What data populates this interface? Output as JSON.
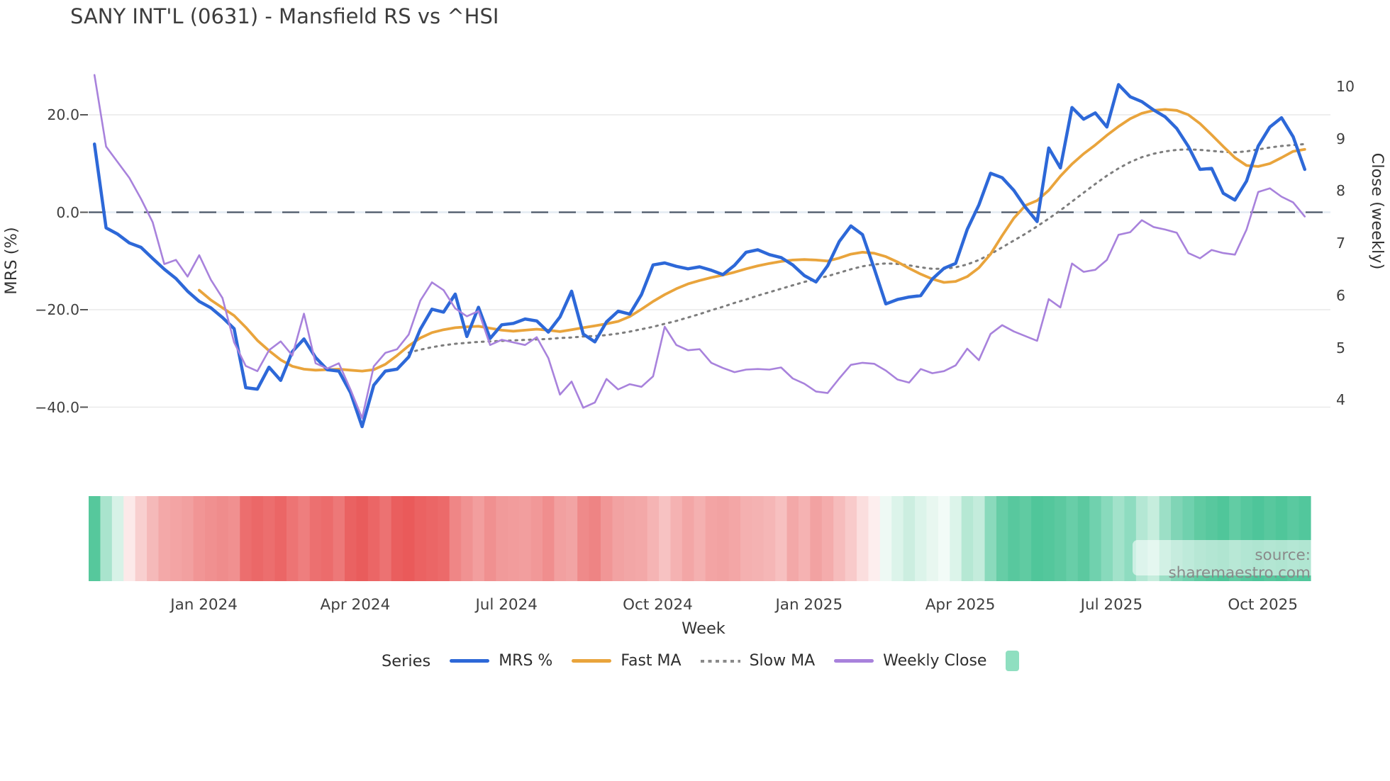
{
  "header": {
    "title": "SANY INT'L (0631) - Mansfield RS vs ^HSI"
  },
  "source": {
    "label": "source: sharemaestro.com"
  },
  "legend": {
    "title": "Series",
    "items": [
      {
        "label": "MRS %",
        "color": "#2d68d8",
        "style": "solid"
      },
      {
        "label": "Fast MA",
        "color": "#e9a43c",
        "style": "solid"
      },
      {
        "label": "Slow MA",
        "color": "#8a8a8a",
        "style": "dotted"
      },
      {
        "label": "Weekly Close",
        "color": "#a882dc",
        "style": "solid"
      }
    ],
    "heatmap_swatch_color": "#8fdfc0"
  },
  "chart_data": {
    "type": "line",
    "title": "SANY INT'L (0631) - Mansfield RS vs ^HSI",
    "xlabel": "Week",
    "ylabel_left": "MRS (%)",
    "ylabel_right": "Close (weekly)",
    "grid": "horizontal-light",
    "zero_reference_line": {
      "value": 0,
      "axis": "left",
      "style": "long-dash",
      "color": "#4d5868"
    },
    "x_tick_labels": [
      "Jan 2024",
      "Apr 2024",
      "Jul 2024",
      "Oct 2024",
      "Jan 2025",
      "Apr 2025",
      "Jul 2025",
      "Oct 2025"
    ],
    "y_left_ticks": [
      {
        "label": "20.0",
        "value": 20
      },
      {
        "label": "0.0",
        "value": 0
      },
      {
        "label": "−20.0",
        "value": -20
      },
      {
        "label": "−40.0",
        "value": -40
      }
    ],
    "y_right_ticks": [
      {
        "label": "10",
        "value": 10
      },
      {
        "label": "9",
        "value": 9
      },
      {
        "label": "8",
        "value": 8
      },
      {
        "label": "7",
        "value": 7
      },
      {
        "label": "6",
        "value": 6
      },
      {
        "label": "5",
        "value": 5
      },
      {
        "label": "4",
        "value": 4
      }
    ],
    "y_left_range": [
      -47,
      31
    ],
    "y_right_range": [
      3.4,
      10.4
    ],
    "weeks": 105,
    "series": [
      {
        "name": "MRS %",
        "axis": "left",
        "color": "#2d68d8",
        "width": 4.5,
        "dash": null,
        "start_week": 0,
        "values": [
          14.0,
          -3.2,
          -4.5,
          -6.3,
          -7.2,
          -9.5,
          -11.7,
          -13.6,
          -16.2,
          -18.3,
          -19.6,
          -21.6,
          -23.9,
          -36.0,
          -36.3,
          -31.8,
          -34.5,
          -28.6,
          -26.0,
          -29.8,
          -32.3,
          -32.6,
          -37.0,
          -44.0,
          -35.5,
          -32.6,
          -32.2,
          -29.7,
          -24.0,
          -19.9,
          -20.5,
          -16.8,
          -25.5,
          -19.5,
          -25.9,
          -23.1,
          -22.8,
          -21.9,
          -22.3,
          -24.6,
          -21.5,
          -16.2,
          -25.0,
          -26.6,
          -22.5,
          -20.3,
          -20.9,
          -16.9,
          -10.8,
          -10.4,
          -11.1,
          -11.6,
          -11.2,
          -11.9,
          -12.8,
          -10.9,
          -8.2,
          -7.7,
          -8.7,
          -9.3,
          -10.8,
          -13.0,
          -14.3,
          -11.0,
          -6.0,
          -2.8,
          -4.6,
          -11.5,
          -18.8,
          -17.9,
          -17.4,
          -17.1,
          -13.7,
          -11.5,
          -10.5,
          -3.5,
          1.5,
          8.0,
          7.1,
          4.5,
          1.0,
          -1.9,
          13.2,
          9.1,
          21.5,
          19.1,
          20.4,
          17.5,
          26.2,
          23.7,
          22.7,
          21.0,
          19.6,
          17.2,
          13.5,
          8.8,
          9.0,
          3.9,
          2.5,
          6.4,
          13.6,
          17.5,
          19.4,
          15.5,
          8.8
        ]
      },
      {
        "name": "Fast MA",
        "axis": "left",
        "color": "#e9a43c",
        "width": 3.8,
        "dash": null,
        "start_week": 9,
        "values": [
          -16.0,
          -18.0,
          -19.6,
          -21.2,
          -23.6,
          -26.3,
          -28.4,
          -30.3,
          -31.6,
          -32.2,
          -32.4,
          -32.3,
          -32.2,
          -32.4,
          -32.6,
          -32.3,
          -31.2,
          -29.4,
          -27.4,
          -25.8,
          -24.7,
          -24.1,
          -23.7,
          -23.5,
          -23.4,
          -23.8,
          -24.2,
          -24.4,
          -24.2,
          -24.0,
          -24.2,
          -24.5,
          -24.1,
          -23.7,
          -23.3,
          -22.9,
          -22.4,
          -21.4,
          -19.9,
          -18.3,
          -16.9,
          -15.7,
          -14.7,
          -14.0,
          -13.4,
          -12.9,
          -12.3,
          -11.6,
          -11.0,
          -10.5,
          -10.1,
          -9.8,
          -9.7,
          -9.8,
          -10.0,
          -9.4,
          -8.6,
          -8.2,
          -8.4,
          -9.1,
          -10.2,
          -11.5,
          -12.7,
          -13.7,
          -14.4,
          -14.2,
          -13.2,
          -11.4,
          -8.6,
          -4.8,
          -1.2,
          1.4,
          2.4,
          4.5,
          7.4,
          9.9,
          12.0,
          13.8,
          15.8,
          17.6,
          19.2,
          20.3,
          20.9,
          21.1,
          20.9,
          20.0,
          18.2,
          15.9,
          13.5,
          11.2,
          9.6,
          9.4,
          10.0,
          11.2,
          12.5,
          12.9
        ]
      },
      {
        "name": "Slow MA",
        "axis": "left",
        "color": "#7d7d7d",
        "width": 3.0,
        "dash": "2.5 7",
        "start_week": 27,
        "values": [
          -28.8,
          -28.2,
          -27.7,
          -27.3,
          -27.0,
          -26.8,
          -26.6,
          -26.5,
          -26.4,
          -26.3,
          -26.2,
          -26.1,
          -26.0,
          -25.8,
          -25.7,
          -25.5,
          -25.4,
          -25.2,
          -24.9,
          -24.5,
          -24.0,
          -23.5,
          -22.9,
          -22.3,
          -21.6,
          -20.9,
          -20.1,
          -19.4,
          -18.6,
          -17.9,
          -17.1,
          -16.4,
          -15.7,
          -15.0,
          -14.3,
          -13.7,
          -13.1,
          -12.4,
          -11.7,
          -11.1,
          -10.7,
          -10.5,
          -10.6,
          -10.9,
          -11.3,
          -11.6,
          -11.6,
          -11.3,
          -10.7,
          -9.8,
          -8.6,
          -7.2,
          -5.8,
          -4.4,
          -2.9,
          -1.3,
          0.4,
          2.2,
          4.0,
          5.8,
          7.5,
          9.0,
          10.3,
          11.3,
          12.0,
          12.5,
          12.8,
          12.9,
          12.8,
          12.6,
          12.4,
          12.3,
          12.5,
          12.9,
          13.3,
          13.6,
          13.8,
          14.0
        ]
      },
      {
        "name": "Weekly Close",
        "axis": "right",
        "color": "#a882dc",
        "width": 2.6,
        "dash": null,
        "start_week": 0,
        "values": [
          10.22,
          8.85,
          8.55,
          8.25,
          7.85,
          7.4,
          6.6,
          6.68,
          6.36,
          6.77,
          6.3,
          5.95,
          5.1,
          4.65,
          4.55,
          4.95,
          5.12,
          4.85,
          5.65,
          4.7,
          4.6,
          4.7,
          4.2,
          3.65,
          4.64,
          4.9,
          4.97,
          5.25,
          5.9,
          6.25,
          6.1,
          5.75,
          5.6,
          5.7,
          5.05,
          5.15,
          5.1,
          5.05,
          5.2,
          4.8,
          4.1,
          4.35,
          3.85,
          3.95,
          4.4,
          4.2,
          4.3,
          4.25,
          4.45,
          5.4,
          5.05,
          4.95,
          4.97,
          4.71,
          4.61,
          4.53,
          4.58,
          4.59,
          4.58,
          4.62,
          4.41,
          4.31,
          4.16,
          4.13,
          4.41,
          4.67,
          4.71,
          4.69,
          4.56,
          4.39,
          4.33,
          4.59,
          4.51,
          4.55,
          4.66,
          4.98,
          4.76,
          5.26,
          5.43,
          5.31,
          5.22,
          5.13,
          5.93,
          5.77,
          6.61,
          6.45,
          6.49,
          6.68,
          7.16,
          7.21,
          7.44,
          7.31,
          7.26,
          7.2,
          6.81,
          6.71,
          6.87,
          6.81,
          6.78,
          7.26,
          7.98,
          8.05,
          7.89,
          7.78,
          7.51
        ]
      }
    ],
    "heatmap_colors": [
      "#56c89c",
      "#a9e4cd",
      "#d7f2e7",
      "#fce9e9",
      "#f8cfcf",
      "#f5b9b9",
      "#f3a8a8",
      "#f3a4a4",
      "#f2a0a0",
      "#f19595",
      "#f09090",
      "#ef8c8c",
      "#f09090",
      "#ec6e6e",
      "#eb6868",
      "#ec6e6e",
      "#eb6666",
      "#ed7474",
      "#ee7e7e",
      "#ec7070",
      "#ec6c6c",
      "#ed7878",
      "#ea6262",
      "#e95c5c",
      "#eb6666",
      "#ec7272",
      "#ea5e5e",
      "#ea5a5a",
      "#eb6262",
      "#eb6666",
      "#ec6a6a",
      "#ef8686",
      "#f09292",
      "#f29e9e",
      "#f09090",
      "#f19a9a",
      "#f29c9c",
      "#f29e9e",
      "#f19898",
      "#f08e8e",
      "#f2a0a0",
      "#f2a4a4",
      "#ef8a8a",
      "#ee8484",
      "#f19696",
      "#f2a2a2",
      "#f2a6a6",
      "#f3a8a8",
      "#f5b4b4",
      "#f7c2c2",
      "#f5b2b2",
      "#f3a6a6",
      "#f4b0b0",
      "#f3a4a4",
      "#f2a2a2",
      "#f3a6a6",
      "#f4b0b0",
      "#f4b2b2",
      "#f5b6b6",
      "#f7c0c0",
      "#f3a8a8",
      "#f5b2b2",
      "#f2a2a2",
      "#f4acac",
      "#f6bcbc",
      "#f8caca",
      "#fbdede",
      "#fdeeee",
      "#eef9f4",
      "#dcf4ea",
      "#cceee0",
      "#dcf4ea",
      "#e8f7f0",
      "#f2fbf7",
      "#dcf4ea",
      "#b6e8d4",
      "#c4ecdc",
      "#8adabc",
      "#66cda6",
      "#58c89e",
      "#60cba2",
      "#50c69a",
      "#54c79c",
      "#5cc9a0",
      "#68cea8",
      "#5cc9a0",
      "#70d1ae",
      "#88dabc",
      "#a2e2ca",
      "#8edcc0",
      "#b4e7d4",
      "#c6eddd",
      "#9cdfc6",
      "#80d5b6",
      "#70d1ae",
      "#60cba2",
      "#58c89e",
      "#50c69a",
      "#62cca4",
      "#56c89e",
      "#4ec59a",
      "#58c89e",
      "#50c69a",
      "#5ac9a0",
      "#52c79c"
    ]
  }
}
